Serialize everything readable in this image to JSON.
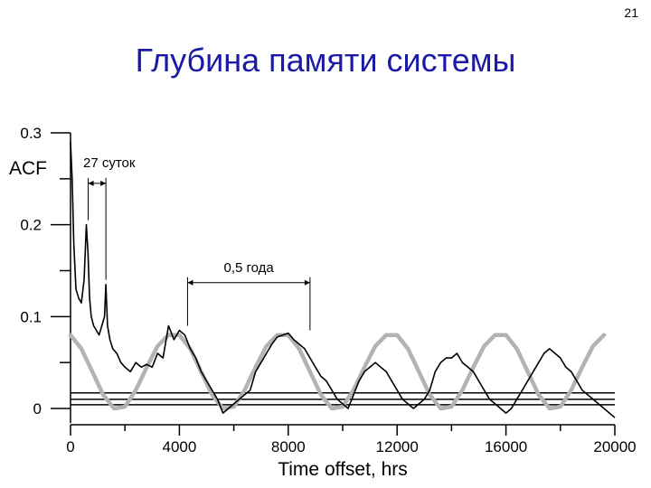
{
  "page_number": "21",
  "title": "Глубина памяти системы",
  "colors": {
    "title": "#1a1aa6",
    "acf_line": "#000000",
    "sine": "#b3b3b3",
    "axes": "#000000"
  },
  "chart_data": {
    "type": "line",
    "ylabel": "ACF",
    "xlabel": "Time offset, hrs",
    "xlim": [
      0,
      20000
    ],
    "ylim": [
      -0.01,
      0.3
    ],
    "x_ticks": [
      0,
      4000,
      8000,
      12000,
      16000,
      20000
    ],
    "x_tick_labels": [
      "0",
      "4000",
      "8000",
      "12000",
      "16000",
      "20000"
    ],
    "y_ticks": [
      0,
      0.1,
      0.2,
      0.3
    ],
    "y_tick_labels": [
      "0",
      "0.1",
      "0.2",
      "0.3"
    ],
    "y_minor_ticks": [
      0.05,
      0.15,
      0.25
    ],
    "series": [
      {
        "style": "noisy-black",
        "x": [
          0,
          60,
          120,
          200,
          300,
          400,
          500,
          580,
          640,
          700,
          760,
          850,
          950,
          1050,
          1150,
          1250,
          1300,
          1360,
          1450,
          1550,
          1700,
          1850,
          2000,
          2200,
          2400,
          2600,
          2800,
          3000,
          3200,
          3400,
          3600,
          3800,
          4000,
          4200,
          4400,
          4600,
          4800,
          5000,
          5200,
          5400,
          5600,
          5800,
          6000,
          6200,
          6400,
          6600,
          6800,
          7000,
          7200,
          7400,
          7600,
          7800,
          8000,
          8200,
          8400,
          8600,
          8800,
          9000,
          9200,
          9400,
          9600,
          9800,
          10000,
          10200,
          10400,
          10600,
          10800,
          11000,
          11200,
          11400,
          11600,
          11800,
          12000,
          12200,
          12400,
          12600,
          12800,
          13000,
          13200,
          13400,
          13600,
          13800,
          14000,
          14200,
          14400,
          14600,
          14800,
          15000,
          15200,
          15400,
          15600,
          15800,
          16000,
          16200,
          16400,
          16600,
          16800,
          17000,
          17200,
          17400,
          17600,
          17800,
          18000,
          18200,
          18400,
          18600,
          18800,
          19000,
          19200,
          19400,
          19600,
          19800,
          20000
        ],
        "y": [
          0.29,
          0.25,
          0.18,
          0.13,
          0.12,
          0.115,
          0.14,
          0.2,
          0.17,
          0.12,
          0.1,
          0.09,
          0.085,
          0.08,
          0.09,
          0.1,
          0.135,
          0.09,
          0.075,
          0.065,
          0.06,
          0.05,
          0.045,
          0.04,
          0.05,
          0.045,
          0.048,
          0.045,
          0.06,
          0.055,
          0.09,
          0.075,
          0.085,
          0.08,
          0.065,
          0.055,
          0.04,
          0.03,
          0.02,
          0.01,
          -0.005,
          0.0,
          0.005,
          0.01,
          0.015,
          0.02,
          0.04,
          0.05,
          0.06,
          0.07,
          0.078,
          0.08,
          0.082,
          0.075,
          0.07,
          0.065,
          0.055,
          0.045,
          0.035,
          0.03,
          0.02,
          0.01,
          0.005,
          0.0,
          0.015,
          0.03,
          0.04,
          0.045,
          0.05,
          0.045,
          0.04,
          0.03,
          0.02,
          0.01,
          0.005,
          0.0,
          0.005,
          0.01,
          0.02,
          0.04,
          0.05,
          0.055,
          0.055,
          0.06,
          0.05,
          0.045,
          0.04,
          0.03,
          0.02,
          0.01,
          0.005,
          0.0,
          -0.005,
          0.0,
          0.01,
          0.02,
          0.03,
          0.04,
          0.05,
          0.06,
          0.065,
          0.06,
          0.055,
          0.045,
          0.04,
          0.03,
          0.02,
          0.015,
          0.01,
          0.005,
          0.0,
          -0.005,
          -0.01
        ]
      },
      {
        "style": "smooth-gray",
        "x": [
          0,
          400,
          800,
          1200,
          1600,
          2000,
          2400,
          2800,
          3200,
          3600,
          4000,
          4400,
          4800,
          5200,
          5600,
          6000,
          6400,
          6800,
          7200,
          7600,
          8000,
          8400,
          8800,
          9200,
          9600,
          10000,
          10400,
          10800,
          11200,
          11600,
          12000,
          12400,
          12800,
          13200,
          13600,
          14000,
          14400,
          14800,
          15200,
          15600,
          16000,
          16400,
          16800,
          17200,
          17600,
          18000,
          18400,
          18800,
          19200,
          19600
        ],
        "y": [
          0.08,
          0.065,
          0.04,
          0.015,
          0.0,
          0.002,
          0.02,
          0.045,
          0.068,
          0.08,
          0.08,
          0.065,
          0.04,
          0.015,
          0.0,
          0.002,
          0.02,
          0.045,
          0.068,
          0.08,
          0.08,
          0.065,
          0.04,
          0.015,
          0.0,
          0.002,
          0.02,
          0.045,
          0.068,
          0.08,
          0.08,
          0.065,
          0.04,
          0.015,
          0.0,
          0.002,
          0.02,
          0.045,
          0.068,
          0.08,
          0.08,
          0.065,
          0.04,
          0.015,
          0.0,
          0.002,
          0.02,
          0.045,
          0.068,
          0.08
        ]
      }
    ],
    "reference_lines_y": [
      0.017,
      0.01,
      0.004
    ],
    "annotations": [
      {
        "label": "27 суток",
        "x_from": 650,
        "x_to": 1300,
        "y": 0.245
      },
      {
        "label": "0,5 года",
        "x_from": 4300,
        "x_to": 8800,
        "y": 0.137
      }
    ]
  }
}
